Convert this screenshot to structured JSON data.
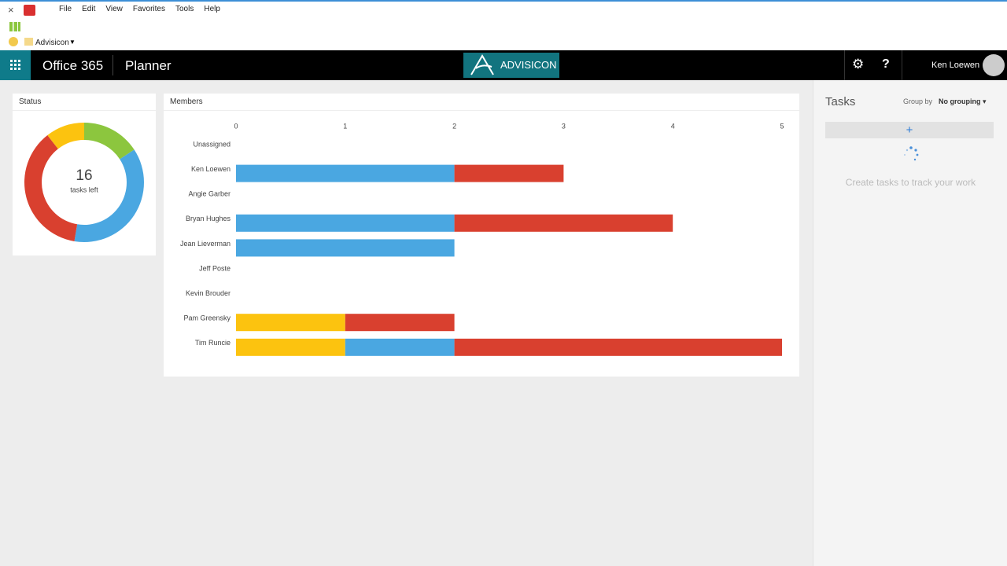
{
  "browser": {
    "menu": [
      "File",
      "Edit",
      "View",
      "Favorites",
      "Tools",
      "Help"
    ],
    "favorite": "Advisicon"
  },
  "header": {
    "suite": "Office 365",
    "app": "Planner",
    "logo": "ADVISICON",
    "user": "Ken Loewen"
  },
  "tasks": {
    "title": "Tasks",
    "group_by_label": "Group by",
    "group_by_value": "No grouping",
    "empty_message": "Create tasks to track your work"
  },
  "chart_data": [
    {
      "type": "pie",
      "title": "Status",
      "total": 16,
      "total_label": "tasks left",
      "values": [
        3,
        7,
        7,
        2
      ],
      "colors": [
        "#8cc63e",
        "#4aa7e1",
        "#d9402f",
        "#fcc30f"
      ]
    },
    {
      "type": "bar",
      "title": "Members",
      "orientation": "horizontal",
      "stacked": true,
      "categories": [
        "Unassigned",
        "Ken Loewen",
        "Angie Garber",
        "Bryan Hughes",
        "Jean Lieverman",
        "Jeff Poste",
        "Kevin Brouder",
        "Pam Greensky",
        "Tim Runcie"
      ],
      "series": [
        {
          "color": "#fcc30f",
          "values": [
            0,
            0,
            0,
            0,
            0,
            0,
            0,
            1,
            1
          ]
        },
        {
          "color": "#4aa7e1",
          "values": [
            0,
            2,
            0,
            2,
            2,
            0,
            0,
            0,
            1
          ]
        },
        {
          "color": "#d9402f",
          "values": [
            0,
            1,
            0,
            2,
            0,
            0,
            0,
            1,
            3
          ]
        }
      ],
      "xlim": [
        0,
        5
      ],
      "xticks": [
        0,
        1,
        2,
        3,
        4,
        5
      ]
    }
  ]
}
